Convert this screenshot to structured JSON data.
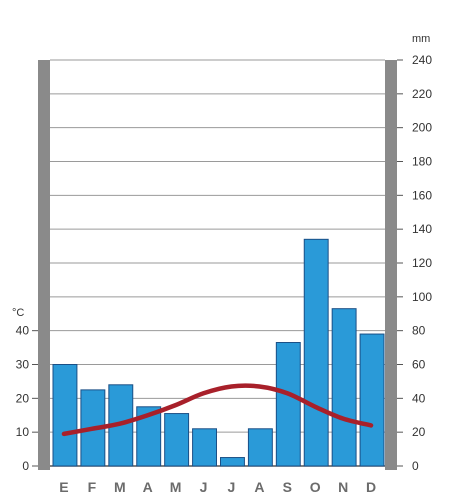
{
  "chart_data": {
    "type": "bar",
    "title": "",
    "xlabel": "",
    "categories": [
      "E",
      "F",
      "M",
      "A",
      "M",
      "J",
      "J",
      "A",
      "S",
      "O",
      "N",
      "D"
    ],
    "series": [
      {
        "type": "bar",
        "axis": "right",
        "values": [
          60,
          45,
          48,
          35,
          31,
          22,
          5,
          22,
          73,
          134,
          93,
          78
        ]
      },
      {
        "type": "line",
        "axis": "left",
        "values": [
          9.5,
          11,
          12.5,
          15,
          18,
          21.5,
          23.5,
          23.5,
          21.5,
          17.5,
          14,
          12
        ]
      }
    ],
    "left_axis": {
      "label": "°C",
      "ticks": [
        0,
        10,
        20,
        30,
        40
      ],
      "ylim": [
        0,
        40
      ]
    },
    "right_axis": {
      "label": "mm",
      "ticks": [
        0,
        20,
        40,
        60,
        80,
        100,
        120,
        140,
        160,
        180,
        200,
        220,
        240
      ],
      "ylim": [
        0,
        240
      ]
    },
    "grid": true,
    "legend": "none",
    "colors": {
      "bar": "#2a9ad8",
      "bar_edge": "#1a4f86",
      "line": "#a8202a",
      "frame": "#8a8a8a",
      "grid": "#9a9a9a"
    }
  }
}
